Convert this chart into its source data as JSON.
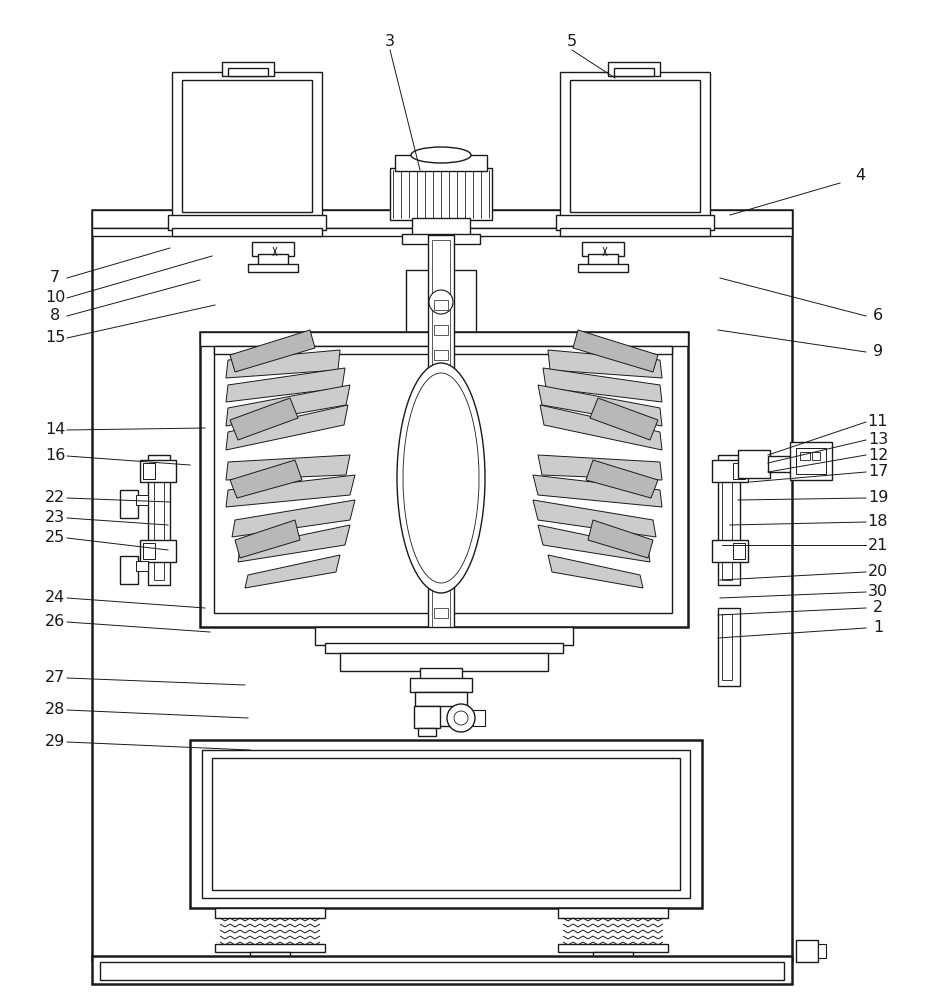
{
  "bg_color": "#ffffff",
  "lc": "#1a1a1a",
  "lw": 1.0,
  "tlw": 1.8,
  "figsize": [
    9.53,
    10.0
  ],
  "dpi": 100,
  "labels_left": [
    [
      "7",
      55,
      278
    ],
    [
      "10",
      55,
      298
    ],
    [
      "8",
      55,
      316
    ],
    [
      "15",
      55,
      338
    ],
    [
      "14",
      55,
      430
    ],
    [
      "16",
      55,
      456
    ],
    [
      "22",
      55,
      498
    ],
    [
      "23",
      55,
      518
    ],
    [
      "25",
      55,
      538
    ],
    [
      "24",
      55,
      598
    ],
    [
      "26",
      55,
      622
    ],
    [
      "27",
      55,
      678
    ],
    [
      "28",
      55,
      710
    ],
    [
      "29",
      55,
      742
    ]
  ],
  "labels_right": [
    [
      "6",
      878,
      316
    ],
    [
      "9",
      878,
      352
    ],
    [
      "11",
      878,
      422
    ],
    [
      "13",
      878,
      440
    ],
    [
      "12",
      878,
      455
    ],
    [
      "17",
      878,
      472
    ],
    [
      "19",
      878,
      498
    ],
    [
      "18",
      878,
      522
    ],
    [
      "21",
      878,
      545
    ],
    [
      "20",
      878,
      572
    ],
    [
      "30",
      878,
      592
    ],
    [
      "2",
      878,
      608
    ],
    [
      "1",
      878,
      628
    ]
  ],
  "labels_top": [
    [
      "3",
      390,
      42
    ],
    [
      "5",
      572,
      42
    ],
    [
      "4",
      860,
      175
    ]
  ]
}
